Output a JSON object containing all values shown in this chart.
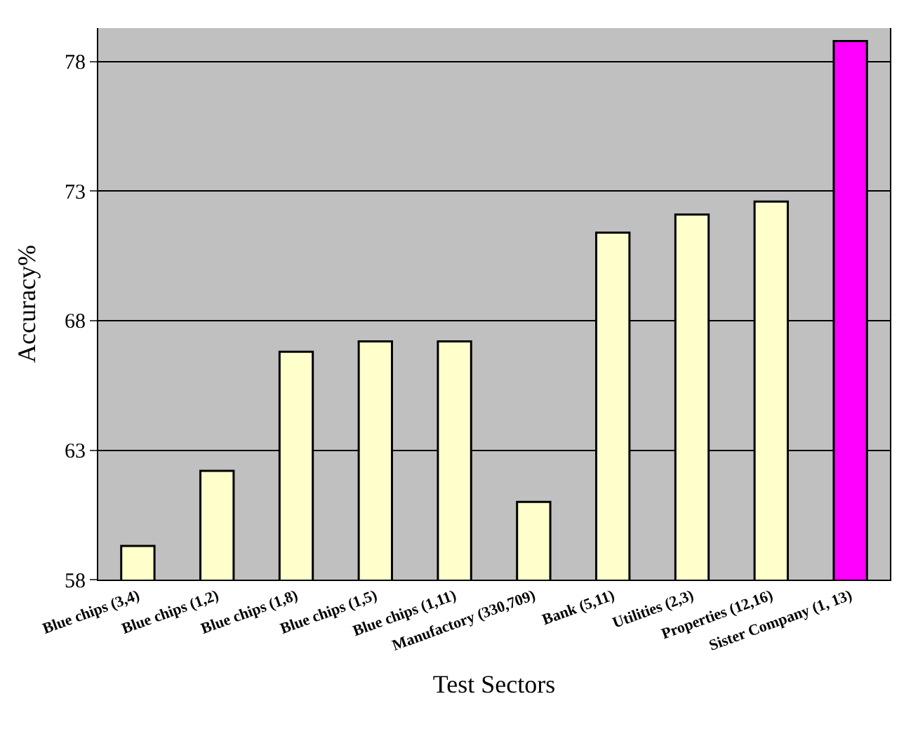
{
  "chart_data": {
    "type": "bar",
    "xlabel": "Test Sectors",
    "ylabel": "Accuracy%",
    "categories": [
      "Blue chips (3,4)",
      "Blue chips (1,2)",
      "Blue chips (1,8)",
      "Blue chips (1,5)",
      "Blue chips (1,11)",
      "Manufactory (330,709)",
      "Bank (5,11)",
      "Utilities (2,3)",
      "Properties (12,16)",
      "Sister Company (1, 13)"
    ],
    "values": [
      59.3,
      62.2,
      66.8,
      67.2,
      67.2,
      61.0,
      71.4,
      72.1,
      72.6,
      78.8
    ],
    "colors": [
      "#ffffcc",
      "#ffffcc",
      "#ffffcc",
      "#ffffcc",
      "#ffffcc",
      "#ffffcc",
      "#ffffcc",
      "#ffffcc",
      "#ffffcc",
      "#ff00ff"
    ],
    "ylim": [
      58,
      79.3
    ],
    "yticks": [
      58,
      63,
      68,
      73,
      78
    ],
    "grid": "y",
    "legend": false
  }
}
